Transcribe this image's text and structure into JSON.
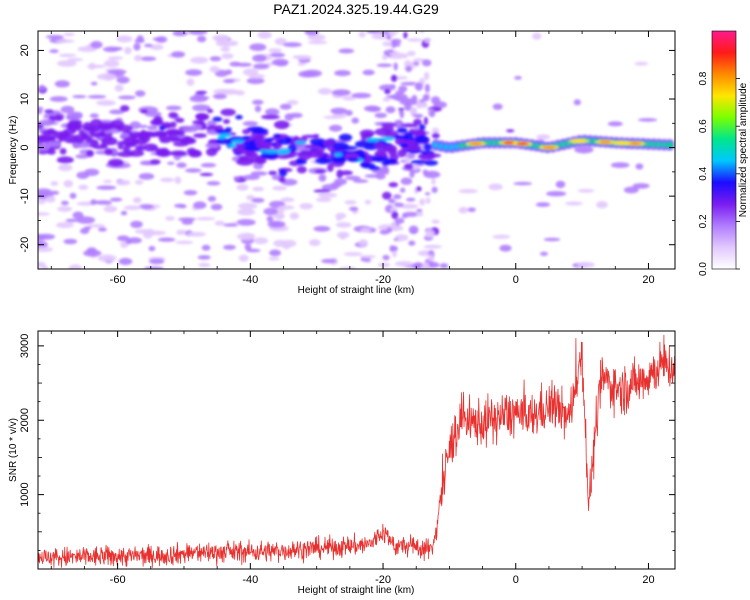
{
  "figure": {
    "title": "PAZ1.2024.325.19.44.G29"
  },
  "colors": {
    "spectrum_scale": [
      "#ffffff",
      "#e2c8ff",
      "#b07dff",
      "#7a1cf0",
      "#1b0cff",
      "#00c8ff",
      "#00e68c",
      "#7aff00",
      "#ffe600",
      "#ff8a00",
      "#ff1a1a",
      "#ff1a8c"
    ],
    "snr_line": "#e8312f"
  },
  "chart_data": [
    {
      "type": "heatmap",
      "xlabel": "Height of straight line (km)",
      "ylabel": "Frequency (Hz)",
      "xlim": [
        -72,
        24
      ],
      "ylim": [
        -25,
        24
      ],
      "xticks": [
        -60,
        -40,
        -20,
        0,
        20
      ],
      "yticks": [
        -20,
        -10,
        0,
        10,
        20
      ],
      "colorbar": {
        "label": "Normalized spectral amplitude",
        "range": [
          0,
          1
        ],
        "ticks": [
          0.0,
          0.2,
          0.4,
          0.6,
          0.8
        ]
      },
      "ridge": [
        {
          "x": -72,
          "y": 3
        },
        {
          "x": -60,
          "y": 2
        },
        {
          "x": -50,
          "y": 3
        },
        {
          "x": -42,
          "y": 2
        },
        {
          "x": -35,
          "y": 0
        },
        {
          "x": -28,
          "y": -1
        },
        {
          "x": -20,
          "y": 0
        },
        {
          "x": -14,
          "y": 1
        },
        {
          "x": -10,
          "y": 0
        },
        {
          "x": -5,
          "y": 1
        },
        {
          "x": 0,
          "y": 1
        },
        {
          "x": 5,
          "y": 0
        },
        {
          "x": 10,
          "y": 1.5
        },
        {
          "x": 15,
          "y": 1
        },
        {
          "x": 24,
          "y": 0.5
        }
      ]
    },
    {
      "type": "line",
      "xlabel": "Height of straight line (km)",
      "ylabel": "SNR (10 * v/v)",
      "xlim": [
        -72,
        24
      ],
      "ylim": [
        0,
        3200
      ],
      "xticks": [
        -60,
        -40,
        -20,
        0,
        20
      ],
      "yticks": [
        1000,
        2000,
        3000
      ],
      "series": [
        {
          "x": [
            -72,
            -66,
            -60,
            -54,
            -48,
            -42,
            -36,
            -30,
            -26,
            -22,
            -20,
            -18,
            -16,
            -14,
            -12.5,
            -12,
            -11,
            -10,
            -9,
            -8,
            -7,
            -6,
            -5,
            -4,
            -2,
            0,
            2,
            4,
            6,
            8,
            9,
            10,
            10.5,
            11,
            12,
            13,
            14,
            16,
            18,
            20,
            22,
            24
          ],
          "y": [
            150,
            160,
            170,
            180,
            220,
            230,
            240,
            280,
            300,
            330,
            500,
            300,
            310,
            280,
            260,
            600,
            1100,
            1600,
            1850,
            2050,
            1900,
            2000,
            1950,
            2000,
            2050,
            2100,
            2000,
            2150,
            2200,
            2000,
            2500,
            2900,
            1900,
            850,
            1800,
            2600,
            2500,
            2400,
            2500,
            2600,
            2750,
            2700
          ]
        }
      ]
    }
  ]
}
